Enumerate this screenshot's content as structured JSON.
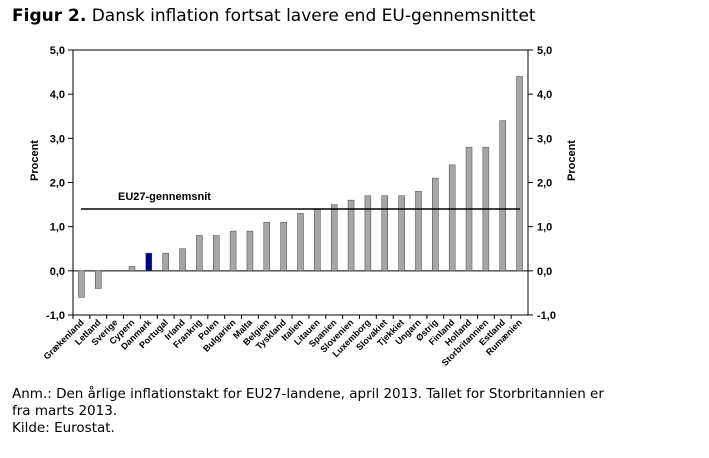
{
  "figure": {
    "label": "Figur 2.",
    "title": "Dansk inflation fortsat lavere end EU-gennemsnittet"
  },
  "notes": {
    "line1": "Anm.: Den årlige inflationstakt for EU27-landene, april 2013. Tallet for Storbritannien er",
    "line2": "fra marts 2013.",
    "line3": "Kilde: Eurostat."
  },
  "colors": {
    "bar": "#a6a6a6",
    "highlight": "#000080",
    "average_line": "#000000"
  },
  "chart_data": {
    "type": "bar",
    "categories": [
      "Grækenland",
      "Letland",
      "Sverige",
      "Cypern",
      "Danmark",
      "Portugal",
      "Irland",
      "Frankrig",
      "Polen",
      "Bulgarien",
      "Malta",
      "Belgien",
      "Tyskland",
      "Italien",
      "Litauen",
      "Spanien",
      "Slovenien",
      "Luxemborg",
      "Slovakiet",
      "Tjekkiet",
      "Ungarn",
      "Østrig",
      "Finland",
      "Holland",
      "Storbritannien",
      "Estland",
      "Rumænien"
    ],
    "values": [
      -0.6,
      -0.4,
      0.0,
      0.1,
      0.4,
      0.4,
      0.5,
      0.8,
      0.8,
      0.9,
      0.9,
      1.1,
      1.1,
      1.3,
      1.4,
      1.5,
      1.6,
      1.7,
      1.7,
      1.7,
      1.8,
      2.1,
      2.4,
      2.8,
      2.8,
      3.4,
      4.4
    ],
    "highlight_category": "Danmark",
    "reference_line": {
      "label": "EU27-gennemsnit",
      "value": 1.4
    },
    "ylabel_left": "Procent",
    "ylabel_right": "Procent",
    "ylim": [
      -1.0,
      5.0
    ],
    "yticks": [
      -1.0,
      0.0,
      1.0,
      2.0,
      3.0,
      4.0,
      5.0
    ],
    "ytick_labels": [
      "-1,0",
      "0,0",
      "1,0",
      "2,0",
      "3,0",
      "4,0",
      "5,0"
    ],
    "grid": false,
    "legend": "none"
  }
}
